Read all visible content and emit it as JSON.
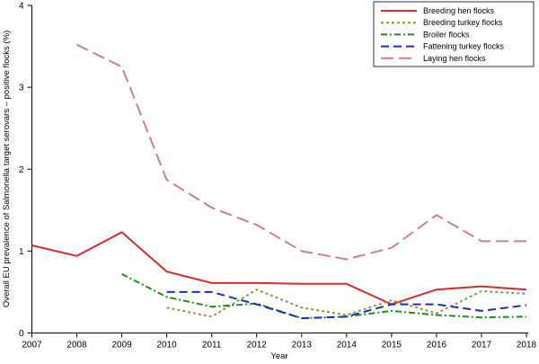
{
  "chart_data": {
    "type": "line",
    "title": "",
    "xlabel": "Year",
    "ylabel": "Overall EU prevalence of Salmonella target serovars – positive flocks (%)",
    "x": [
      2007,
      2008,
      2009,
      2010,
      2011,
      2012,
      2013,
      2014,
      2015,
      2016,
      2017,
      2018
    ],
    "xlim": [
      2007,
      2018
    ],
    "ylim": [
      0,
      4
    ],
    "yticks": [
      0,
      1,
      2,
      3,
      4
    ],
    "grid": false,
    "legend_position": "top-right",
    "series": [
      {
        "name": "Breeding hen flocks",
        "color": "#d62b2b",
        "dash": "solid",
        "values": [
          1.07,
          0.94,
          1.23,
          0.75,
          0.61,
          0.61,
          0.6,
          0.6,
          0.35,
          0.53,
          0.57,
          0.53
        ]
      },
      {
        "name": "Breeding turkey flocks",
        "color": "#8c9a3e",
        "dash": "dotted",
        "values": [
          null,
          null,
          null,
          0.31,
          0.2,
          0.53,
          0.31,
          0.22,
          0.4,
          0.24,
          0.51,
          0.48
        ]
      },
      {
        "name": "Broiler flocks",
        "color": "#1f8a1f",
        "dash": "dashdot",
        "values": [
          null,
          null,
          0.72,
          0.44,
          0.32,
          0.36,
          0.18,
          0.2,
          0.27,
          0.22,
          0.19,
          0.2
        ]
      },
      {
        "name": "Fattening turkey flocks",
        "color": "#1a2ec2",
        "dash": "dashed",
        "values": [
          null,
          null,
          null,
          0.5,
          0.5,
          0.35,
          0.18,
          0.2,
          0.35,
          0.35,
          0.27,
          0.34
        ]
      },
      {
        "name": "Laying hen flocks",
        "color": "#d27a9a",
        "dash": "longdash",
        "values": [
          null,
          3.52,
          3.25,
          1.87,
          1.53,
          1.32,
          1.0,
          0.9,
          1.04,
          1.44,
          1.12,
          1.12
        ]
      }
    ]
  }
}
